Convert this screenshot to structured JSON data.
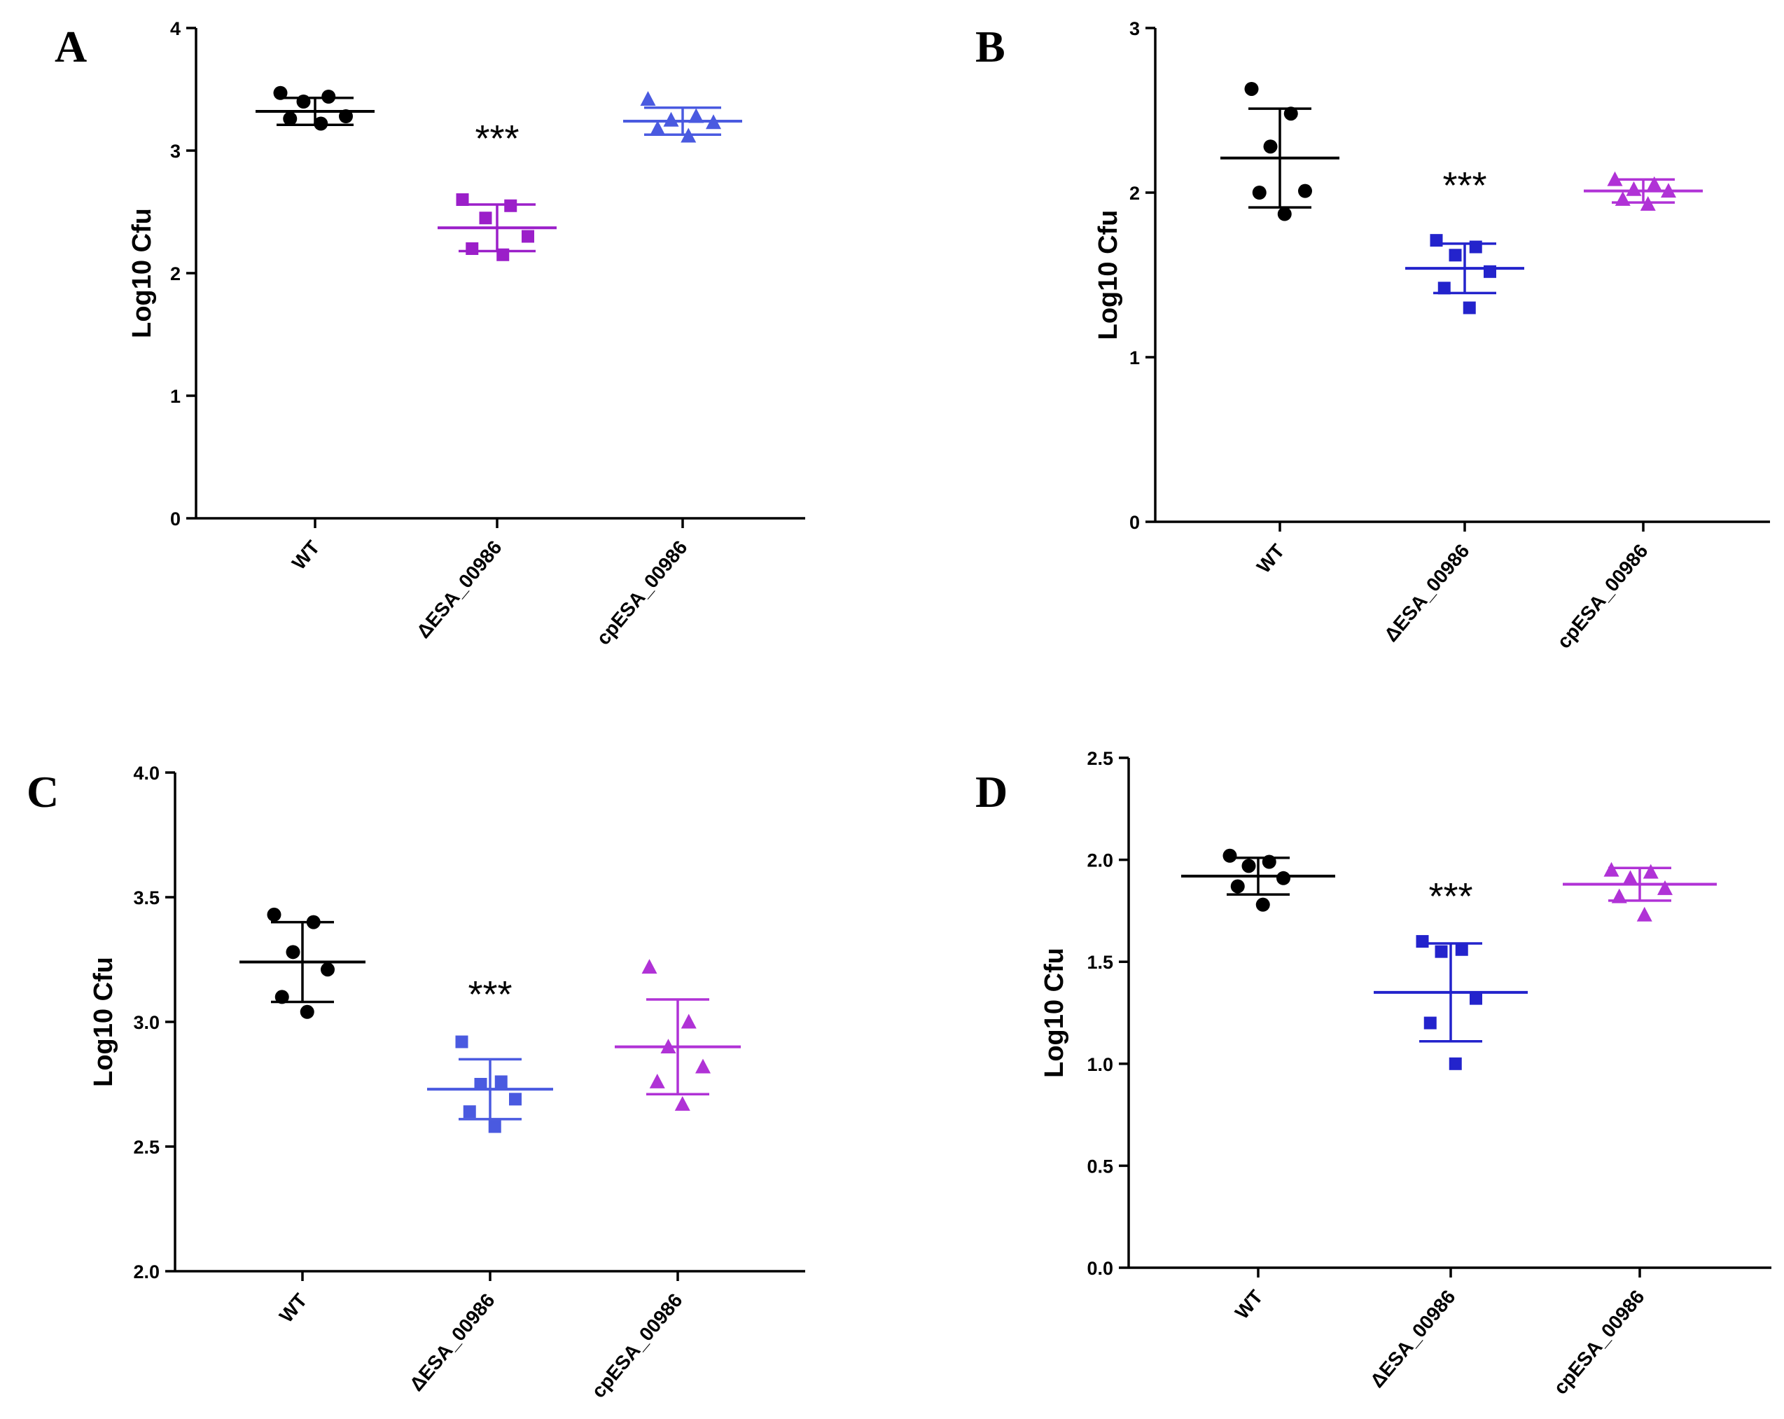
{
  "figure": {
    "panels": [
      "A",
      "B",
      "C",
      "D"
    ]
  },
  "colors": {
    "black": "#000000",
    "purple": "#9b1fc9",
    "blue": "#2323cc",
    "lightblue": "#4a5ae0",
    "magenta": "#b032d6"
  },
  "chart_data": [
    {
      "panel": "A",
      "type": "scatter",
      "title": "",
      "xlabel": "",
      "ylabel": "Log10 Cfu",
      "ylim": [
        0,
        4
      ],
      "yticks": [
        "0",
        "1",
        "2",
        "3",
        "4"
      ],
      "ytick_values": [
        0,
        1,
        2,
        3,
        4
      ],
      "grid": false,
      "categories": [
        "WT",
        "ΔESA_00986",
        "cpESA_00986"
      ],
      "significance": [
        "",
        "***",
        ""
      ],
      "series": [
        {
          "category": "WT",
          "marker": "circle",
          "color": "#000000",
          "mean": 3.32,
          "sd": 0.11,
          "values": [
            3.47,
            3.44,
            3.4,
            3.28,
            3.26,
            3.22
          ]
        },
        {
          "category": "ΔESA_00986",
          "marker": "square",
          "color": "#9b1fc9",
          "mean": 2.37,
          "sd": 0.19,
          "values": [
            2.6,
            2.55,
            2.45,
            2.3,
            2.2,
            2.15
          ]
        },
        {
          "category": "cpESA_00986",
          "marker": "triangle",
          "color": "#4a5ae0",
          "mean": 3.24,
          "sd": 0.11,
          "values": [
            3.42,
            3.28,
            3.25,
            3.23,
            3.18,
            3.12
          ]
        }
      ]
    },
    {
      "panel": "B",
      "type": "scatter",
      "title": "",
      "xlabel": "",
      "ylabel": "Log10 Cfu",
      "ylim": [
        0,
        3
      ],
      "yticks": [
        "0",
        "1",
        "2",
        "3"
      ],
      "ytick_values": [
        0,
        1,
        2,
        3
      ],
      "grid": false,
      "categories": [
        "WT",
        "ΔESA_00986",
        "cpESA_00986"
      ],
      "significance": [
        "",
        "***",
        ""
      ],
      "series": [
        {
          "category": "WT",
          "marker": "circle",
          "color": "#000000",
          "mean": 2.21,
          "sd": 0.3,
          "values": [
            2.63,
            2.48,
            2.28,
            2.01,
            2.0,
            1.87
          ]
        },
        {
          "category": "ΔESA_00986",
          "marker": "square",
          "color": "#2323cc",
          "mean": 1.54,
          "sd": 0.15,
          "values": [
            1.71,
            1.67,
            1.62,
            1.52,
            1.42,
            1.3
          ]
        },
        {
          "category": "cpESA_00986",
          "marker": "triangle",
          "color": "#b032d6",
          "mean": 2.01,
          "sd": 0.07,
          "values": [
            2.08,
            2.05,
            2.02,
            2.01,
            1.96,
            1.93
          ]
        }
      ]
    },
    {
      "panel": "C",
      "type": "scatter",
      "title": "",
      "xlabel": "",
      "ylabel": "Log10 Cfu",
      "ylim": [
        2.0,
        4.0
      ],
      "yticks": [
        "2.0",
        "2.5",
        "3.0",
        "3.5",
        "4.0"
      ],
      "ytick_values": [
        2.0,
        2.5,
        3.0,
        3.5,
        4.0
      ],
      "grid": false,
      "categories": [
        "WT",
        "ΔESA_00986",
        "cpESA_00986"
      ],
      "significance": [
        "",
        "***",
        ""
      ],
      "series": [
        {
          "category": "WT",
          "marker": "circle",
          "color": "#000000",
          "mean": 3.24,
          "sd": 0.16,
          "values": [
            3.43,
            3.4,
            3.28,
            3.21,
            3.1,
            3.04
          ]
        },
        {
          "category": "ΔESA_00986",
          "marker": "square",
          "color": "#4a5ae0",
          "mean": 2.73,
          "sd": 0.12,
          "values": [
            2.92,
            2.76,
            2.75,
            2.69,
            2.64,
            2.58
          ]
        },
        {
          "category": "cpESA_00986",
          "marker": "triangle",
          "color": "#b032d6",
          "mean": 2.9,
          "sd": 0.19,
          "values": [
            3.22,
            3.0,
            2.9,
            2.82,
            2.76,
            2.67
          ]
        }
      ]
    },
    {
      "panel": "D",
      "type": "scatter",
      "title": "",
      "xlabel": "",
      "ylabel": "Log10 Cfu",
      "ylim": [
        0.0,
        2.5
      ],
      "yticks": [
        "0.0",
        "0.5",
        "1.0",
        "1.5",
        "2.0",
        "2.5"
      ],
      "ytick_values": [
        0.0,
        0.5,
        1.0,
        1.5,
        2.0,
        2.5
      ],
      "grid": false,
      "categories": [
        "WT",
        "ΔESA_00986",
        "cpESA_00986"
      ],
      "significance": [
        "",
        "***",
        ""
      ],
      "series": [
        {
          "category": "WT",
          "marker": "circle",
          "color": "#000000",
          "mean": 1.92,
          "sd": 0.09,
          "values": [
            2.02,
            1.99,
            1.97,
            1.91,
            1.87,
            1.78
          ]
        },
        {
          "category": "ΔESA_00986",
          "marker": "square",
          "color": "#2323cc",
          "mean": 1.35,
          "sd": 0.24,
          "values": [
            1.6,
            1.56,
            1.55,
            1.32,
            1.2,
            1.0
          ]
        },
        {
          "category": "cpESA_00986",
          "marker": "triangle",
          "color": "#b032d6",
          "mean": 1.88,
          "sd": 0.08,
          "values": [
            1.95,
            1.94,
            1.91,
            1.86,
            1.82,
            1.73
          ]
        }
      ]
    }
  ]
}
